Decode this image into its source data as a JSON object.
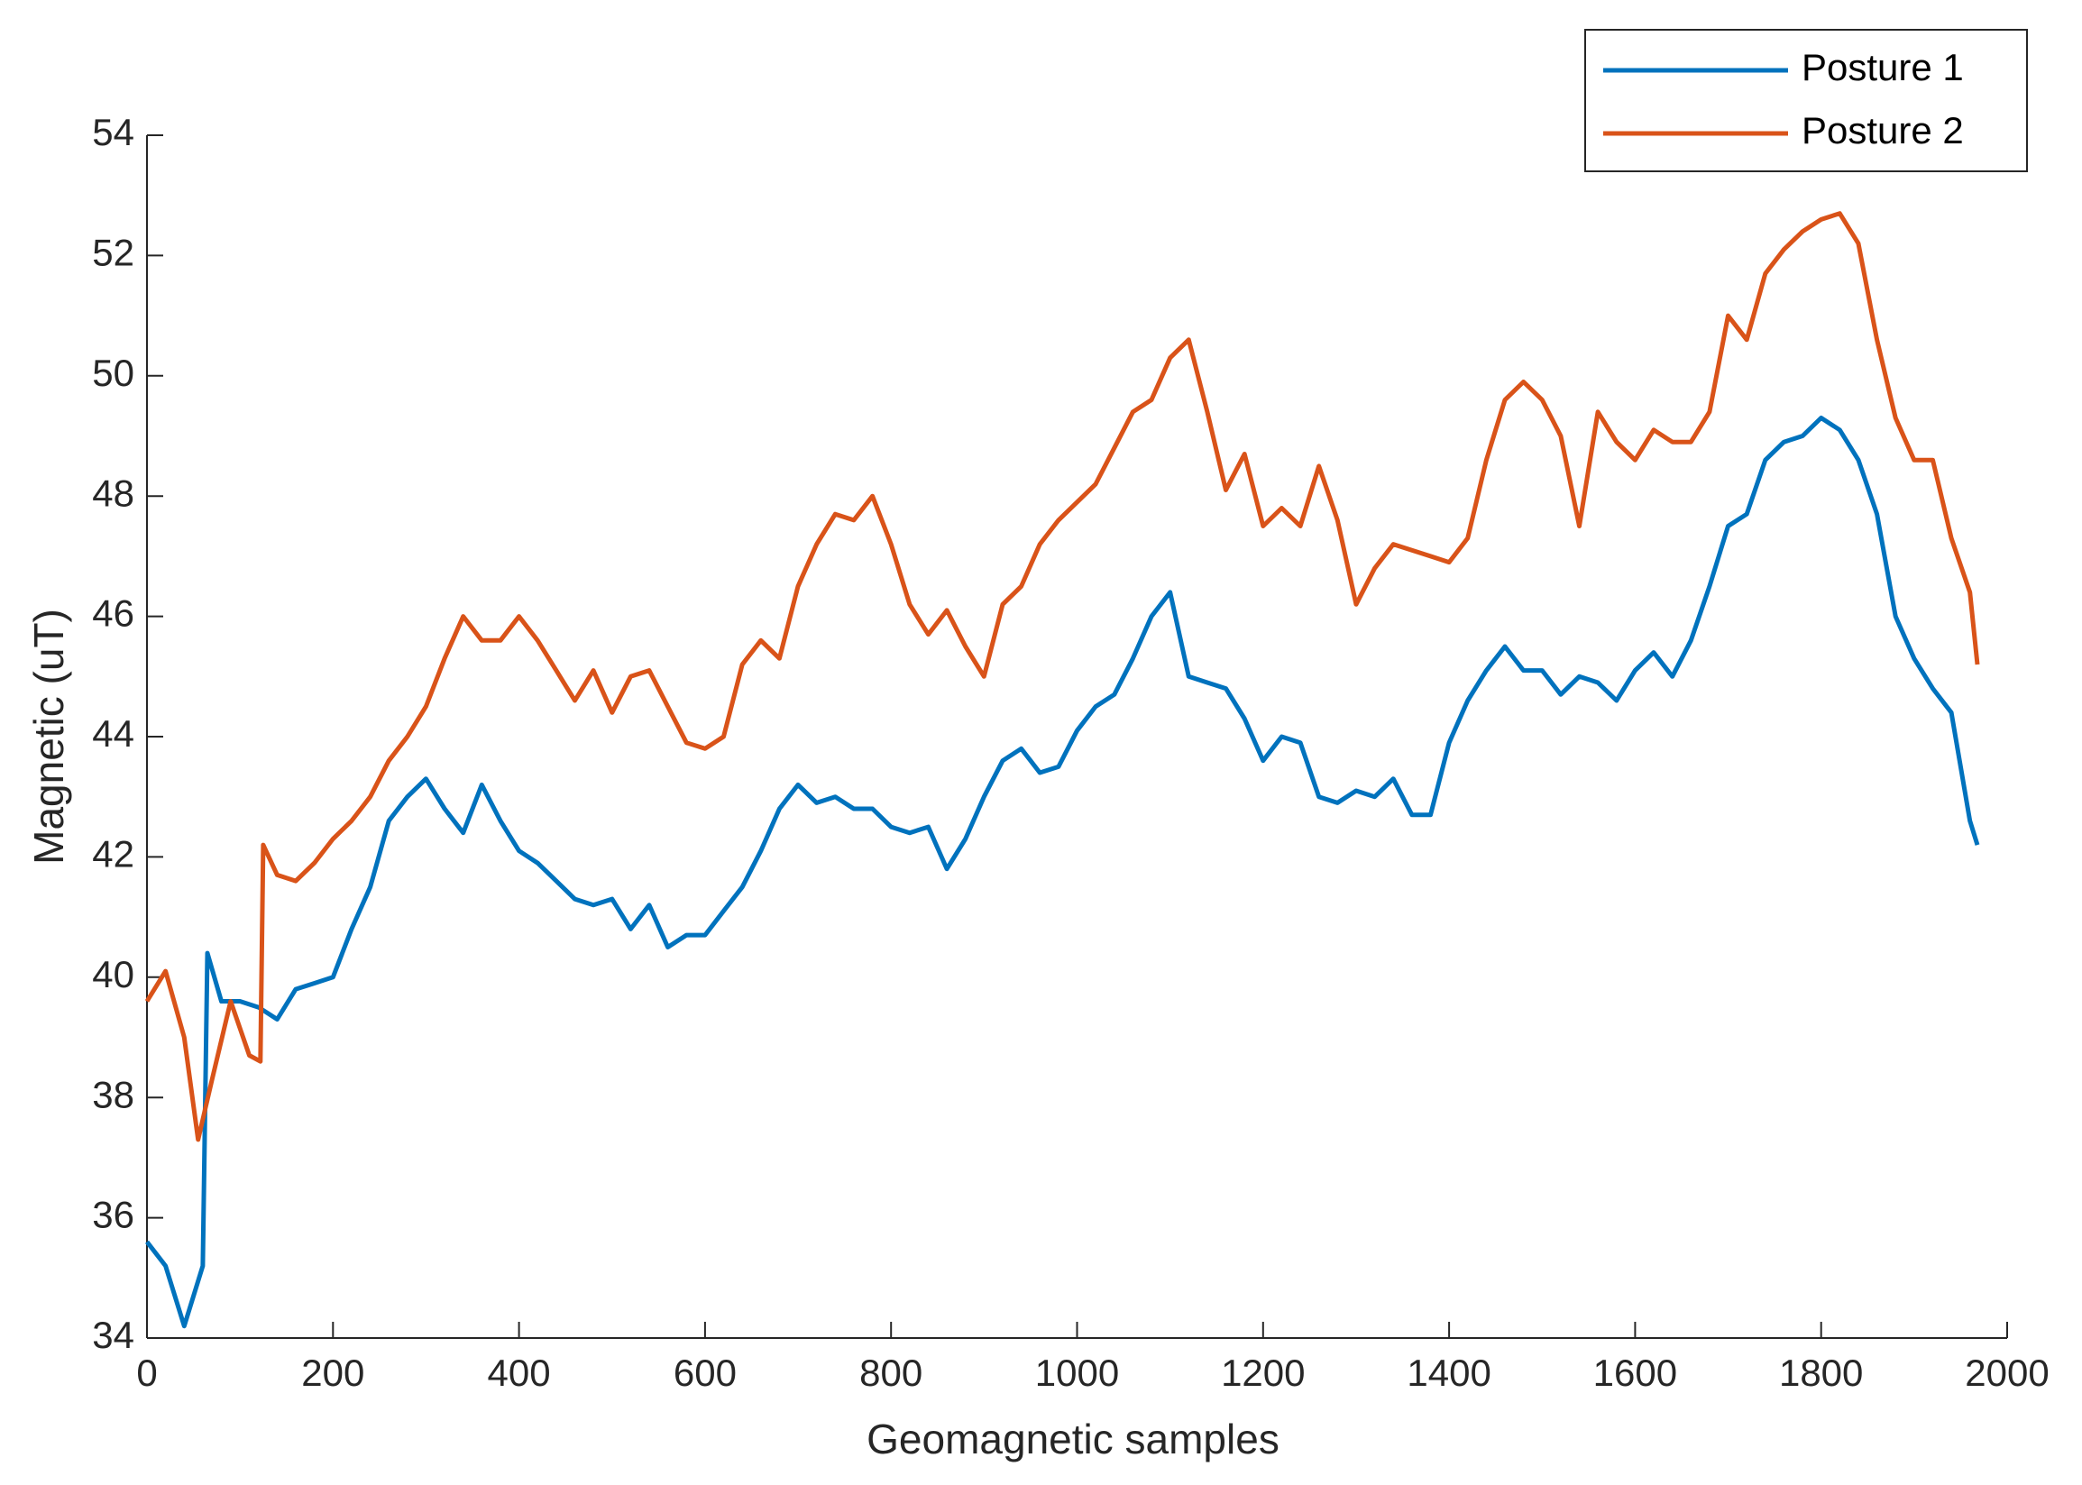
{
  "chart_data": {
    "type": "line",
    "xlabel": "Geomagnetic  samples",
    "ylabel": "Magnetic (uT)",
    "xlim": [
      0,
      2000
    ],
    "xticks": [
      0,
      200,
      400,
      600,
      800,
      1000,
      1200,
      1400,
      1600,
      1800,
      2000
    ],
    "ylim": [
      34,
      54
    ],
    "yticks": [
      34,
      36,
      38,
      40,
      42,
      44,
      46,
      48,
      50,
      52,
      54
    ],
    "legend": "top-right",
    "series": [
      {
        "name": "Posture 1",
        "color": "#0072BD",
        "x": [
          0,
          20,
          40,
          60,
          65,
          80,
          100,
          120,
          140,
          160,
          180,
          200,
          220,
          240,
          260,
          280,
          300,
          320,
          340,
          360,
          380,
          400,
          420,
          440,
          460,
          480,
          500,
          520,
          540,
          560,
          580,
          600,
          620,
          640,
          660,
          680,
          700,
          720,
          740,
          760,
          780,
          800,
          820,
          840,
          860,
          880,
          900,
          920,
          940,
          960,
          980,
          1000,
          1020,
          1040,
          1060,
          1080,
          1100,
          1120,
          1140,
          1160,
          1180,
          1200,
          1220,
          1240,
          1260,
          1280,
          1300,
          1320,
          1340,
          1360,
          1380,
          1400,
          1420,
          1440,
          1460,
          1480,
          1500,
          1520,
          1540,
          1560,
          1580,
          1600,
          1620,
          1640,
          1660,
          1680,
          1700,
          1720,
          1740,
          1760,
          1780,
          1800,
          1820,
          1840,
          1860,
          1880,
          1900,
          1920,
          1940,
          1960,
          1968
        ],
        "values": [
          35.6,
          35.2,
          34.2,
          35.2,
          40.4,
          39.6,
          39.6,
          39.5,
          39.3,
          39.8,
          39.9,
          40.0,
          40.8,
          41.5,
          42.6,
          43.0,
          43.3,
          42.8,
          42.4,
          43.2,
          42.6,
          42.1,
          41.9,
          41.6,
          41.3,
          41.2,
          41.3,
          40.8,
          41.2,
          40.5,
          40.7,
          40.7,
          41.1,
          41.5,
          42.1,
          42.8,
          43.2,
          42.9,
          43.0,
          42.8,
          42.8,
          42.5,
          42.4,
          42.5,
          41.8,
          42.3,
          43.0,
          43.6,
          43.8,
          43.4,
          43.5,
          44.1,
          44.5,
          44.7,
          45.3,
          46.0,
          46.4,
          45.0,
          44.9,
          44.8,
          44.3,
          43.6,
          44.0,
          43.9,
          43.0,
          42.9,
          43.1,
          43.0,
          43.3,
          42.7,
          42.7,
          43.9,
          44.6,
          45.1,
          45.5,
          45.1,
          45.1,
          44.7,
          45.0,
          44.9,
          44.6,
          45.1,
          45.4,
          45.0,
          45.6,
          46.5,
          47.5,
          47.7,
          48.6,
          48.9,
          49.0,
          49.3,
          49.1,
          48.6,
          47.7,
          46.0,
          45.3,
          44.8,
          44.4,
          42.6,
          42.2
        ]
      },
      {
        "name": "Posture 2",
        "color": "#D95319",
        "x": [
          0,
          20,
          40,
          55,
          70,
          90,
          110,
          122,
          125,
          140,
          160,
          180,
          200,
          220,
          240,
          260,
          280,
          300,
          320,
          340,
          360,
          380,
          400,
          420,
          440,
          460,
          480,
          500,
          520,
          540,
          560,
          580,
          600,
          620,
          640,
          660,
          680,
          700,
          720,
          740,
          760,
          780,
          800,
          820,
          840,
          860,
          880,
          900,
          920,
          940,
          960,
          980,
          1000,
          1020,
          1040,
          1060,
          1080,
          1100,
          1120,
          1140,
          1160,
          1180,
          1200,
          1220,
          1240,
          1260,
          1280,
          1300,
          1320,
          1340,
          1360,
          1380,
          1400,
          1420,
          1440,
          1460,
          1480,
          1500,
          1520,
          1540,
          1560,
          1580,
          1600,
          1620,
          1640,
          1660,
          1680,
          1700,
          1720,
          1740,
          1760,
          1780,
          1800,
          1820,
          1840,
          1860,
          1880,
          1900,
          1920,
          1940,
          1960,
          1968
        ],
        "values": [
          39.6,
          40.1,
          39.0,
          37.3,
          38.3,
          39.6,
          38.7,
          38.6,
          42.2,
          41.7,
          41.6,
          41.9,
          42.3,
          42.6,
          43.0,
          43.6,
          44.0,
          44.5,
          45.3,
          46.0,
          45.6,
          45.6,
          46.0,
          45.6,
          45.1,
          44.6,
          45.1,
          44.4,
          45.0,
          45.1,
          44.5,
          43.9,
          43.8,
          44.0,
          45.2,
          45.6,
          45.3,
          46.5,
          47.2,
          47.7,
          47.6,
          48.0,
          47.2,
          46.2,
          45.7,
          46.1,
          45.5,
          45.0,
          46.2,
          46.5,
          47.2,
          47.6,
          47.9,
          48.2,
          48.8,
          49.4,
          49.6,
          50.3,
          50.6,
          49.4,
          48.1,
          48.7,
          47.5,
          47.8,
          47.5,
          48.5,
          47.6,
          46.2,
          46.8,
          47.2,
          47.1,
          47.0,
          46.9,
          47.3,
          48.6,
          49.6,
          49.9,
          49.6,
          49.0,
          47.5,
          49.4,
          48.9,
          48.6,
          49.1,
          48.9,
          48.9,
          49.4,
          51.0,
          50.6,
          51.7,
          52.1,
          52.4,
          52.6,
          52.7,
          52.2,
          50.6,
          49.3,
          48.6,
          48.6,
          47.3,
          46.4,
          45.2
        ]
      }
    ]
  }
}
